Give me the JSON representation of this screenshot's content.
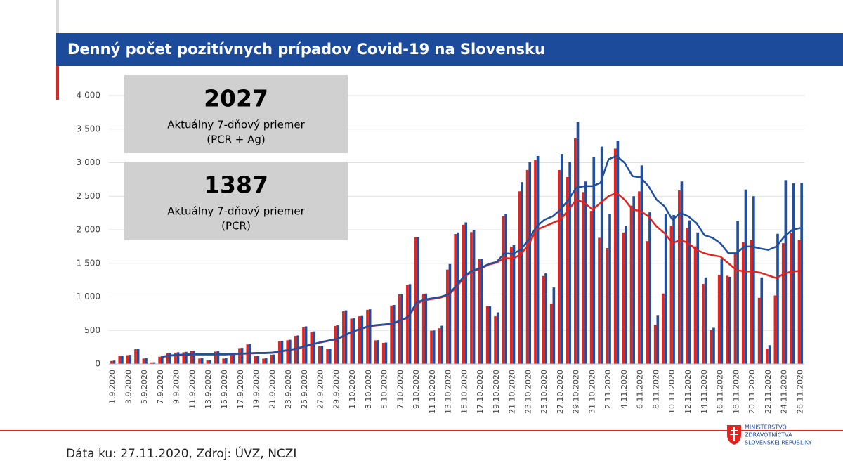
{
  "chart_data": {
    "type": "bar",
    "title": "Denný počet pozitívnych prípadov Covid-19 na Slovensku",
    "boxes": [
      {
        "value": "2027",
        "label": "Aktuálny 7-dňový priemer",
        "sublabel": "(PCR + Ag)"
      },
      {
        "value": "1387",
        "label": "Aktuálny 7-dňový priemer",
        "sublabel": "(PCR)"
      }
    ],
    "footer": "Dáta ku: 27.11.2020, Zdroj: ÚVZ, NCZI",
    "logo": [
      "MINISTERSTVO",
      "ZDRAVOTNÍCTVA",
      "SLOVENSKEJ REPUBLIKY"
    ],
    "ylim": [
      0,
      4000
    ],
    "yticks": [
      0,
      500,
      {
        "value": 1000,
        "label": "1 000"
      },
      {
        "value": 1500,
        "label": "1 500"
      },
      {
        "value": 2000,
        "label": "2 000"
      },
      {
        "value": 2500,
        "label": "2 500"
      },
      {
        "value": 3000,
        "label": "3 000"
      },
      {
        "value": 3500,
        "label": "3 500"
      },
      {
        "value": 4000,
        "label": "4 000"
      }
    ],
    "grid": true,
    "categories": [
      "1.9.2020",
      null,
      "3.9.2020",
      null,
      "5.9.2020",
      null,
      "7.9.2020",
      null,
      "9.9.2020",
      null,
      "11.9.2020",
      null,
      "13.9.2020",
      null,
      "15.9.2020",
      null,
      "17.9.2020",
      null,
      "19.9.2020",
      null,
      "21.9.2020",
      null,
      "23.9.2020",
      null,
      "25.9.2020",
      null,
      "27.9.2020",
      null,
      "29.9.2020",
      null,
      "1.10.2020",
      null,
      "3.10.2020",
      null,
      "5.10.2020",
      null,
      "7.10.2020",
      null,
      "9.10.2020",
      null,
      "11.10.2020",
      null,
      "13.10.2020",
      null,
      "15.10.2020",
      null,
      "17.10.2020",
      null,
      "19.10.2020",
      null,
      "21.10.2020",
      null,
      "23.10.2020",
      null,
      "25.10.2020",
      null,
      "27.10.2020",
      null,
      "29.10.2020",
      null,
      "31.10.2020",
      null,
      "2.11.2020",
      null,
      "4.11.2020",
      null,
      "6.11.2020",
      null,
      "8.11.2020",
      null,
      "10.11.2020",
      null,
      "12.11.2020",
      null,
      "14.11.2020",
      null,
      "16.11.2020",
      null,
      "18.11.2020",
      null,
      "20.11.2020",
      null,
      "22.11.2020",
      null,
      "24.11.2020",
      null,
      "26.11.2020"
    ],
    "series": [
      {
        "kind": "bar",
        "color": "#e3231e",
        "values": [
          44,
          123,
          130,
          220,
          80,
          23,
          107,
          157,
          168,
          174,
          197,
          81,
          51,
          184,
          80,
          157,
          236,
          291,
          116,
          79,
          138,
          338,
          353,
          418,
          552,
          477,
          263,
          225,
          567,
          786,
          676,
          711,
          808,
          352,
          314,
          872,
          1037,
          1183,
          1889,
          1046,
          496,
          532,
          1407,
          1937,
          2075,
          1965,
          1560,
          864,
          711,
          2202,
          1747,
          2573,
          2890,
          3042,
          1312,
          902,
          2890,
          2785,
          3363,
          2562,
          2282,
          1880,
          1728,
          3210,
          1960,
          2359,
          2572,
          1830,
          582,
          1050,
          2064,
          2586,
          2030,
          1753,
          1193,
          505,
          1330,
          1315,
          1651,
          1816,
          1851,
          987,
          229,
          1021,
          1800,
          1950,
          1850
        ]
      },
      {
        "kind": "bar",
        "color": "#1f4f9e",
        "values": [
          50,
          125,
          135,
          230,
          85,
          25,
          110,
          165,
          175,
          180,
          200,
          85,
          55,
          190,
          85,
          160,
          240,
          295,
          120,
          85,
          140,
          345,
          360,
          425,
          560,
          485,
          270,
          230,
          575,
          800,
          680,
          715,
          815,
          355,
          320,
          880,
          1045,
          1190,
          1890,
          1050,
          500,
          570,
          1490,
          1960,
          2110,
          1990,
          1570,
          860,
          770,
          2240,
          1770,
          2710,
          3010,
          3100,
          1350,
          1140,
          3130,
          3010,
          3610,
          2720,
          3080,
          3240,
          2240,
          3330,
          2060,
          2500,
          2960,
          2260,
          720,
          2240,
          2220,
          2720,
          2140,
          1960,
          1290,
          540,
          1560,
          1300,
          2130,
          2600,
          2500,
          1290,
          280,
          1940,
          2740,
          2690,
          2700
        ]
      },
      {
        "kind": "line",
        "color": "#e3231e",
        "values": [
          null,
          null,
          null,
          null,
          null,
          null,
          100,
          120,
          130,
          135,
          140,
          140,
          140,
          140,
          140,
          145,
          150,
          155,
          160,
          160,
          165,
          185,
          205,
          225,
          260,
          290,
          320,
          345,
          370,
          420,
          480,
          520,
          560,
          575,
          585,
          600,
          640,
          700,
          900,
          950,
          970,
          990,
          1030,
          1150,
          1300,
          1380,
          1420,
          1480,
          1510,
          1580,
          1570,
          1630,
          1780,
          2000,
          2050,
          2100,
          2150,
          2300,
          2450,
          2400,
          2300,
          2400,
          2500,
          2550,
          2450,
          2300,
          2280,
          2200,
          2050,
          1950,
          1800,
          1850,
          1800,
          1700,
          1650,
          1620,
          1600,
          1500,
          1400,
          1380,
          1380,
          1360,
          1320,
          1280,
          1350,
          1380,
          1387
        ]
      },
      {
        "kind": "line",
        "color": "#1f4f9e",
        "values": [
          null,
          null,
          null,
          null,
          null,
          null,
          105,
          125,
          135,
          140,
          145,
          145,
          145,
          145,
          145,
          150,
          155,
          160,
          165,
          165,
          170,
          190,
          210,
          230,
          265,
          295,
          325,
          350,
          375,
          425,
          485,
          525,
          565,
          580,
          590,
          605,
          650,
          710,
          920,
          960,
          980,
          1000,
          1040,
          1170,
          1320,
          1390,
          1430,
          1490,
          1520,
          1650,
          1640,
          1700,
          1850,
          2050,
          2150,
          2200,
          2300,
          2450,
          2630,
          2650,
          2650,
          2700,
          3050,
          3100,
          3000,
          2800,
          2780,
          2650,
          2450,
          2350,
          2150,
          2250,
          2200,
          2100,
          1920,
          1880,
          1800,
          1650,
          1650,
          1750,
          1750,
          1720,
          1700,
          1750,
          1900,
          2000,
          2027
        ]
      }
    ]
  }
}
